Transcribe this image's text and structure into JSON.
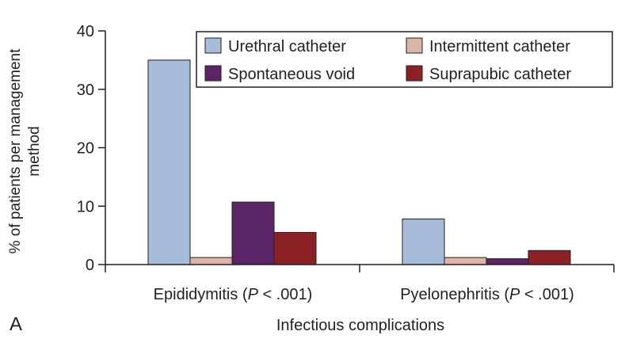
{
  "chart_data": {
    "type": "bar",
    "panel_label": "A",
    "xlabel": "Infectious complications",
    "ylabel_lines": [
      "% of patients per management",
      "method"
    ],
    "ylim": [
      0,
      40
    ],
    "yticks": [
      0,
      10,
      20,
      30,
      40
    ],
    "categories": [
      {
        "label": "Epididymitis (",
        "italic": "P",
        "suffix": " < .001)"
      },
      {
        "label": "Pyelonephritis (",
        "italic": "P",
        "suffix": " < .001)"
      }
    ],
    "series": [
      {
        "name": "Urethral catheter",
        "color": "#a7bbda",
        "values": [
          35,
          7.8
        ]
      },
      {
        "name": "Intermittent catheter",
        "color": "#dcb4a8",
        "values": [
          1.2,
          1.2
        ]
      },
      {
        "name": "Spontaneous void",
        "color": "#5b2466",
        "values": [
          10.7,
          1.0
        ]
      },
      {
        "name": "Suprapubic catheter",
        "color": "#8b2125",
        "values": [
          5.5,
          2.4
        ]
      }
    ],
    "legend_placement": "top-right",
    "grid": false
  }
}
